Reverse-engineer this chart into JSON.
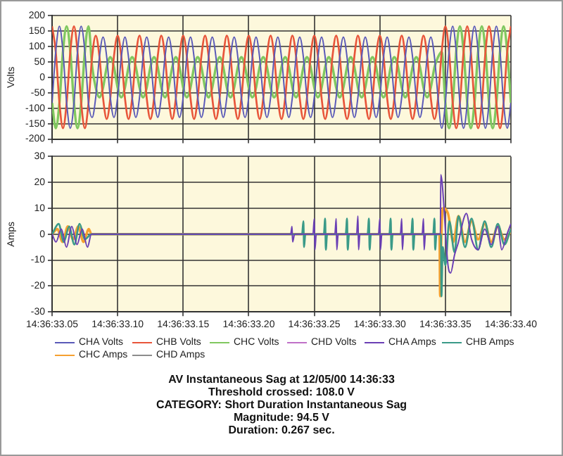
{
  "chart_data": [
    {
      "type": "line",
      "ylabel": "Volts",
      "xlim": [
        "--12-05T14:36:33.05",
        "--12-05T14:36:33.40"
      ],
      "xticks": [
        {
          "value": "--12-05T14:36:33.05",
          "label": null
        },
        {
          "value": "--12-05T14:36:33.10",
          "label": null
        },
        {
          "value": "--12-05T14:36:33.15",
          "label": null
        },
        {
          "value": "--12-05T14:36:33.20",
          "label": null
        },
        {
          "value": "--12-05T14:36:33.25",
          "label": null
        },
        {
          "value": "--12-05T14:36:33.30",
          "label": null
        },
        {
          "value": "--12-05T14:36:33.35",
          "label": null
        },
        {
          "value": "--12-05T14:36:33.40",
          "label": null
        }
      ],
      "ylim": [
        -200,
        200
      ],
      "yticks": [
        -200,
        -150,
        -100,
        -50,
        0,
        50,
        100,
        150,
        200
      ],
      "grid": true,
      "legend": "bottom",
      "tick_labels": "y",
      "x": [
        "--12-05T14:36:33.05",
        "--12-05T14:36:33.0528",
        "--12-05T14:36:33.0556",
        "--12-05T14:36:33.0583",
        "--12-05T14:36:33.0611",
        "--12-05T14:36:33.0639",
        "--12-05T14:36:33.0667",
        "--12-05T14:36:33.0694",
        "--12-05T14:36:33.0722",
        "--12-05T14:36:33.075",
        "--12-05T14:36:33.0778",
        "--12-05T14:36:33.0806",
        "--12-05T14:36:33.0833",
        "--12-05T14:36:33.0861",
        "--12-05T14:36:33.0889",
        "--12-05T14:36:33.0917",
        "--12-05T14:36:33.0944",
        "--12-05T14:36:33.0972",
        "--12-05T14:36:33.1",
        "--12-05T14:36:33.1028",
        "--12-05T14:36:33.1056",
        "--12-05T14:36:33.1083",
        "--12-05T14:36:33.1111",
        "--12-05T14:36:33.1139",
        "--12-05T14:36:33.1167",
        "--12-05T14:36:33.1194",
        "--12-05T14:36:33.1222",
        "--12-05T14:36:33.125",
        "--12-05T14:36:33.1278",
        "--12-05T14:36:33.1306",
        "--12-05T14:36:33.1333",
        "--12-05T14:36:33.1361",
        "--12-05T14:36:33.1389",
        "--12-05T14:36:33.1417",
        "--12-05T14:36:33.1444",
        "--12-05T14:36:33.1472",
        "--12-05T14:36:33.15",
        "--12-05T14:36:33.1528",
        "--12-05T14:36:33.1556",
        "--12-05T14:36:33.1583",
        "--12-05T14:36:33.1611",
        "--12-05T14:36:33.1639",
        "--12-05T14:36:33.1667",
        "--12-05T14:36:33.1694",
        "--12-05T14:36:33.1722",
        "--12-05T14:36:33.175",
        "--12-05T14:36:33.1778",
        "--12-05T14:36:33.1806",
        "--12-05T14:36:33.1833",
        "--12-05T14:36:33.1861",
        "--12-05T14:36:33.1889",
        "--12-05T14:36:33.1917",
        "--12-05T14:36:33.1944",
        "--12-05T14:36:33.1972",
        "--12-05T14:36:33.2",
        "--12-05T14:36:33.2028",
        "--12-05T14:36:33.2056",
        "--12-05T14:36:33.2083",
        "--12-05T14:36:33.2111",
        "--12-05T14:36:33.2139",
        "--12-05T14:36:33.2167",
        "--12-05T14:36:33.2194",
        "--12-05T14:36:33.2222",
        "--12-05T14:36:33.225",
        "--12-05T14:36:33.2278",
        "--12-05T14:36:33.2306",
        "--12-05T14:36:33.2333",
        "--12-05T14:36:33.2361",
        "--12-05T14:36:33.2389",
        "--12-05T14:36:33.2417",
        "--12-05T14:36:33.2444",
        "--12-05T14:36:33.2472",
        "--12-05T14:36:33.25",
        "--12-05T14:36:33.2528",
        "--12-05T14:36:33.2556",
        "--12-05T14:36:33.2583",
        "--12-05T14:36:33.2611",
        "--12-05T14:36:33.2639",
        "--12-05T14:36:33.2667",
        "--12-05T14:36:33.2694",
        "--12-05T14:36:33.2722",
        "--12-05T14:36:33.275",
        "--12-05T14:36:33.2778",
        "--12-05T14:36:33.2806",
        "--12-05T14:36:33.2833",
        "--12-05T14:36:33.2861",
        "--12-05T14:36:33.2889",
        "--12-05T14:36:33.2917",
        "--12-05T14:36:33.2944",
        "--12-05T14:36:33.2972",
        "--12-05T14:36:33.3",
        "--12-05T14:36:33.3028",
        "--12-05T14:36:33.3056",
        "--12-05T14:36:33.3083",
        "--12-05T14:36:33.3111",
        "--12-05T14:36:33.3139",
        "--12-05T14:36:33.3167",
        "--12-05T14:36:33.3194",
        "--12-05T14:36:33.3222",
        "--12-05T14:36:33.325",
        "--12-05T14:36:33.3278",
        "--12-05T14:36:33.3306",
        "--12-05T14:36:33.3333",
        "--12-05T14:36:33.3361",
        "--12-05T14:36:33.3389",
        "--12-05T14:36:33.3417",
        "--12-05T14:36:33.3444",
        "--12-05T14:36:33.3472",
        "--12-05T14:36:33.35",
        "--12-05T14:36:33.3528",
        "--12-05T14:36:33.3556",
        "--12-05T14:36:33.3583",
        "--12-05T14:36:33.3611",
        "--12-05T14:36:33.3639",
        "--12-05T14:36:33.3667",
        "--12-05T14:36:33.3694",
        "--12-05T14:36:33.3722",
        "--12-05T14:36:33.375",
        "--12-05T14:36:33.3778",
        "--12-05T14:36:33.3806",
        "--12-05T14:36:33.3833",
        "--12-05T14:36:33.3861",
        "--12-05T14:36:33.3889",
        "--12-05T14:36:33.3917",
        "--12-05T14:36:33.3944",
        "--12-05T14:36:33.3972",
        "--12-05T14:36:33.4"
      ],
      "series": [
        {
          "name": "CHA Volts",
          "color": "#5a5ab8",
          "values": [
            -83,
            83,
            165,
            83,
            -83,
            -165,
            -83,
            83,
            165,
            83,
            -83,
            -130,
            -65,
            65,
            130,
            65,
            -65,
            -130,
            -65,
            65,
            130,
            65,
            -65,
            -130,
            -65,
            65,
            130,
            65,
            -65,
            -130,
            -65,
            65,
            130,
            65,
            -65,
            -130,
            -65,
            65,
            130,
            65,
            -65,
            -130,
            -65,
            65,
            130,
            65,
            -65,
            -130,
            -65,
            65,
            130,
            65,
            -65,
            -130,
            -65,
            65,
            130,
            65,
            -65,
            -130,
            -65,
            65,
            130,
            65,
            -65,
            -130,
            -65,
            65,
            130,
            65,
            -65,
            -130,
            -65,
            65,
            130,
            65,
            -65,
            -130,
            -65,
            65,
            130,
            65,
            -65,
            -130,
            -65,
            65,
            130,
            65,
            -65,
            -130,
            -65,
            65,
            130,
            65,
            -65,
            -130,
            -65,
            65,
            130,
            65,
            -65,
            -130,
            -65,
            65,
            130,
            65,
            -65,
            -165,
            -83,
            83,
            165,
            83,
            -83,
            -165,
            -83,
            83,
            165,
            83,
            -83,
            -165,
            -83,
            83,
            165,
            83,
            -83,
            -165,
            -83
          ]
        },
        {
          "name": "CHB Volts",
          "color": "#e8553a",
          "values": [
            165,
            83,
            -83,
            -165,
            -83,
            83,
            165,
            83,
            -83,
            -165,
            -83,
            68,
            135,
            68,
            -68,
            -135,
            -68,
            68,
            135,
            68,
            -68,
            -135,
            -68,
            68,
            135,
            68,
            -68,
            -135,
            -68,
            68,
            135,
            68,
            -68,
            -135,
            -68,
            68,
            135,
            68,
            -68,
            -135,
            -68,
            68,
            135,
            68,
            -68,
            -135,
            -68,
            68,
            135,
            68,
            -68,
            -135,
            -68,
            68,
            135,
            68,
            -68,
            -135,
            -68,
            68,
            135,
            68,
            -68,
            -135,
            -68,
            68,
            135,
            68,
            -68,
            -135,
            -68,
            68,
            135,
            68,
            -68,
            -135,
            -68,
            68,
            135,
            68,
            -68,
            -135,
            -68,
            68,
            135,
            68,
            -68,
            -135,
            -68,
            68,
            135,
            68,
            -68,
            -135,
            -68,
            68,
            135,
            68,
            -68,
            -135,
            -68,
            68,
            135,
            68,
            -68,
            -135,
            -68,
            83,
            165,
            83,
            -83,
            -165,
            -83,
            83,
            165,
            83,
            -83,
            -165,
            -83,
            83,
            165,
            83,
            -83,
            -165,
            -83,
            83,
            165
          ]
        },
        {
          "name": "CHC Volts",
          "color": "#80c860",
          "values": [
            -83,
            -165,
            -83,
            83,
            165,
            83,
            -83,
            -165,
            -83,
            83,
            165,
            33,
            -33,
            -65,
            -33,
            33,
            65,
            33,
            -33,
            -65,
            -33,
            33,
            65,
            33,
            -33,
            -65,
            -33,
            33,
            65,
            33,
            -33,
            -65,
            -33,
            33,
            65,
            33,
            -33,
            -65,
            -33,
            33,
            65,
            33,
            -33,
            -65,
            -33,
            33,
            65,
            33,
            -33,
            -65,
            -33,
            33,
            65,
            33,
            -33,
            -65,
            -33,
            33,
            65,
            33,
            -33,
            -65,
            -33,
            33,
            65,
            33,
            -33,
            -65,
            -33,
            33,
            65,
            33,
            -33,
            -65,
            -33,
            33,
            65,
            33,
            -33,
            -65,
            -33,
            33,
            65,
            33,
            -33,
            -65,
            -33,
            33,
            65,
            33,
            -33,
            -65,
            -33,
            33,
            65,
            33,
            -33,
            -65,
            -33,
            33,
            65,
            33,
            -33,
            -65,
            -33,
            33,
            65,
            83,
            -83,
            -165,
            -83,
            83,
            165,
            83,
            -83,
            -165,
            -83,
            83,
            165,
            83,
            -83,
            -165,
            -83,
            83,
            165,
            83,
            -83
          ]
        },
        {
          "name": "CHD Volts",
          "color": "#c070c8",
          "values": [
            null,
            null,
            null,
            null,
            null,
            null,
            null,
            null,
            null,
            null,
            null,
            null,
            null,
            null,
            null,
            null,
            null,
            null,
            null,
            null,
            null,
            null,
            null,
            null,
            null,
            null,
            null,
            null,
            null,
            null,
            null,
            null,
            null,
            null,
            null,
            null,
            null,
            null,
            null,
            null,
            null,
            null,
            null,
            null,
            null,
            null,
            null,
            null,
            null,
            null,
            null,
            null,
            null,
            null,
            null,
            null,
            null,
            null,
            null,
            null,
            null,
            null,
            null,
            null,
            null,
            null,
            null,
            null,
            null,
            null,
            null,
            null,
            null,
            null,
            null,
            null,
            null,
            null,
            null,
            null,
            null,
            null,
            null,
            null,
            null,
            null,
            null,
            null,
            null,
            null,
            null,
            null,
            null,
            null,
            null,
            null,
            null,
            null,
            null,
            null,
            null,
            null,
            null,
            null,
            null,
            null,
            null,
            null,
            null,
            null,
            null,
            null,
            null,
            null,
            null,
            null,
            null,
            null,
            null,
            null,
            null,
            null,
            null,
            null,
            null,
            null,
            null
          ]
        }
      ]
    },
    {
      "type": "line",
      "ylabel": "Amps",
      "xlim": [
        "--12-05T14:36:33.05",
        "--12-05T14:36:33.40"
      ],
      "xticks": [
        {
          "value": "--12-05T14:36:33.05",
          "label": "14:36:33.05"
        },
        {
          "value": "--12-05T14:36:33.10",
          "label": "14:36:33.10"
        },
        {
          "value": "--12-05T14:36:33.15",
          "label": "14:36:33.15"
        },
        {
          "value": "--12-05T14:36:33.20",
          "label": "14:36:33.20"
        },
        {
          "value": "--12-05T14:36:33.25",
          "label": "14:36:33.25"
        },
        {
          "value": "--12-05T14:36:33.30",
          "label": "14:36:33.30"
        },
        {
          "value": "--12-05T14:36:33.35",
          "label": "14:36:33.35"
        },
        {
          "value": "--12-05T14:36:33.40",
          "label": "14:36:33.40"
        }
      ],
      "ylim": [
        -30,
        30
      ],
      "yticks": [
        -30,
        -20,
        -10,
        0,
        10,
        20,
        30
      ],
      "grid": true,
      "legend": "bottom",
      "annotations": [
        "AV Instantaneous Sag at 12/05/00 14:36:33",
        "Threshold crossed: 108.0 V",
        "CATEGORY: Short Duration Instantaneous Sag",
        "Magnitude: 94.5 V",
        "Duration: 0.267 sec."
      ],
      "series": [
        {
          "name": "CHA Amps",
          "color": "#6a3fb5",
          "x": [
            "--12-05T14:36:33.05",
            "--12-05T14:36:33.053",
            "--12-05T14:36:33.057",
            "--12-05T14:36:33.061",
            "--12-05T14:36:33.065",
            "--12-05T14:36:33.069",
            "--12-05T14:36:33.073",
            "--12-05T14:36:33.077",
            "--12-05T14:36:33.08",
            "--12-05T14:36:33.15",
            "--12-05T14:36:33.232",
            "--12-05T14:36:33.233",
            "--12-05T14:36:33.2335",
            "--12-05T14:36:33.235",
            "--12-05T14:36:33.249",
            "--12-05T14:36:33.25",
            "--12-05T14:36:33.2505",
            "--12-05T14:36:33.2515",
            "--12-05T14:36:33.2657",
            "--12-05T14:36:33.2667",
            "--12-05T14:36:33.2672",
            "--12-05T14:36:33.2682",
            "--12-05T14:36:33.2823",
            "--12-05T14:36:33.2833",
            "--12-05T14:36:33.2838",
            "--12-05T14:36:33.2848",
            "--12-05T14:36:33.299",
            "--12-05T14:36:33.3",
            "--12-05T14:36:33.3005",
            "--12-05T14:36:33.3015",
            "--12-05T14:36:33.3157",
            "--12-05T14:36:33.3167",
            "--12-05T14:36:33.3172",
            "--12-05T14:36:33.3182",
            "--12-05T14:36:33.3323",
            "--12-05T14:36:33.3333",
            "--12-05T14:36:33.3338",
            "--12-05T14:36:33.3348",
            "--12-05T14:36:33.3462",
            "--12-05T14:36:33.3465",
            "--12-05T14:36:33.3475",
            "--12-05T14:36:33.352",
            "--12-05T14:36:33.354",
            "--12-05T14:36:33.357",
            "--12-05T14:36:33.36",
            "--12-05T14:36:33.364",
            "--12-05T14:36:33.366",
            "--12-05T14:36:33.37",
            "--12-05T14:36:33.375",
            "--12-05T14:36:33.38",
            "--12-05T14:36:33.385",
            "--12-05T14:36:33.39",
            "--12-05T14:36:33.393",
            "--12-05T14:36:33.397",
            "--12-05T14:36:33.4"
          ],
          "values": [
            0,
            -3,
            2,
            -5,
            3,
            -4,
            2,
            -5,
            0,
            0,
            0,
            3,
            -3,
            0,
            0,
            6,
            -6,
            0,
            0,
            6,
            -6,
            0,
            0,
            7,
            -6,
            0,
            0,
            6,
            -6,
            0,
            0,
            6,
            -6,
            0,
            0,
            6,
            -6,
            0,
            0,
            23,
            20,
            -12,
            -15,
            -8,
            -3,
            6,
            8,
            -2,
            -6,
            2,
            -4,
            3,
            -6,
            0,
            4
          ]
        },
        {
          "name": "CHB Amps",
          "color": "#3a9a88",
          "x": [
            "--12-05T14:36:33.05",
            "--12-05T14:36:33.055",
            "--12-05T14:36:33.059",
            "--12-05T14:36:33.063",
            "--12-05T14:36:33.067",
            "--12-05T14:36:33.071",
            "--12-05T14:36:33.075",
            "--12-05T14:36:33.08",
            "--12-05T14:36:33.2",
            "--12-05T14:36:33.2407",
            "--12-05T14:36:33.2417",
            "--12-05T14:36:33.2422",
            "--12-05T14:36:33.2432",
            "--12-05T14:36:33.2573",
            "--12-05T14:36:33.2583",
            "--12-05T14:36:33.2588",
            "--12-05T14:36:33.2598",
            "--12-05T14:36:33.274",
            "--12-05T14:36:33.275",
            "--12-05T14:36:33.2755",
            "--12-05T14:36:33.2765",
            "--12-05T14:36:33.2907",
            "--12-05T14:36:33.2917",
            "--12-05T14:36:33.2922",
            "--12-05T14:36:33.2932",
            "--12-05T14:36:33.3073",
            "--12-05T14:36:33.3083",
            "--12-05T14:36:33.3088",
            "--12-05T14:36:33.3098",
            "--12-05T14:36:33.324",
            "--12-05T14:36:33.325",
            "--12-05T14:36:33.3255",
            "--12-05T14:36:33.3265",
            "--12-05T14:36:33.3407",
            "--12-05T14:36:33.3417",
            "--12-05T14:36:33.3422",
            "--12-05T14:36:33.3432",
            "--12-05T14:36:33.3466",
            "--12-05T14:36:33.347",
            "--12-05T14:36:33.348",
            "--12-05T14:36:33.35",
            "--12-05T14:36:33.353",
            "--12-05T14:36:33.357",
            "--12-05T14:36:33.36",
            "--12-05T14:36:33.365",
            "--12-05T14:36:33.37",
            "--12-05T14:36:33.375",
            "--12-05T14:36:33.38",
            "--12-05T14:36:33.385",
            "--12-05T14:36:33.39",
            "--12-05T14:36:33.395",
            "--12-05T14:36:33.4"
          ],
          "values": [
            0,
            4,
            -3,
            3,
            -4,
            4,
            -2,
            0,
            0,
            0,
            5,
            -5,
            0,
            0,
            6,
            -6,
            0,
            0,
            6,
            -6,
            0,
            0,
            6,
            -6,
            0,
            0,
            6,
            -6,
            0,
            0,
            6,
            -6,
            0,
            0,
            6,
            -6,
            0,
            0,
            -24,
            -5,
            -12,
            5,
            -7,
            7,
            -5,
            6,
            -6,
            5,
            -5,
            4,
            -4,
            2
          ]
        },
        {
          "name": "CHC Amps",
          "color": "#f5a030",
          "x": [
            "--12-05T14:36:33.05",
            "--12-05T14:36:33.054",
            "--12-05T14:36:33.058",
            "--12-05T14:36:33.062",
            "--12-05T14:36:33.066",
            "--12-05T14:36:33.07",
            "--12-05T14:36:33.074",
            "--12-05T14:36:33.078",
            "--12-05T14:36:33.08",
            "--12-05T14:36:33.2",
            "--12-05T14:36:33.3455",
            "--12-05T14:36:33.346",
            "--12-05T14:36:33.3465",
            "--12-05T14:36:33.348",
            "--12-05T14:36:33.352",
            "--12-05T14:36:33.356",
            "--12-05T14:36:33.36",
            "--12-05T14:36:33.365",
            "--12-05T14:36:33.37",
            "--12-05T14:36:33.375",
            "--12-05T14:36:33.38",
            "--12-05T14:36:33.385",
            "--12-05T14:36:33.39",
            "--12-05T14:36:33.395",
            "--12-05T14:36:33.4"
          ],
          "values": [
            0,
            2,
            -3,
            3,
            -2,
            3,
            -3,
            2,
            0,
            0,
            0,
            -24,
            -10,
            10,
            8,
            -3,
            7,
            -3,
            5,
            -2,
            4,
            -3,
            3,
            -2,
            1
          ]
        },
        {
          "name": "CHD Amps",
          "color": "#8c8c8c"
        }
      ]
    }
  ]
}
